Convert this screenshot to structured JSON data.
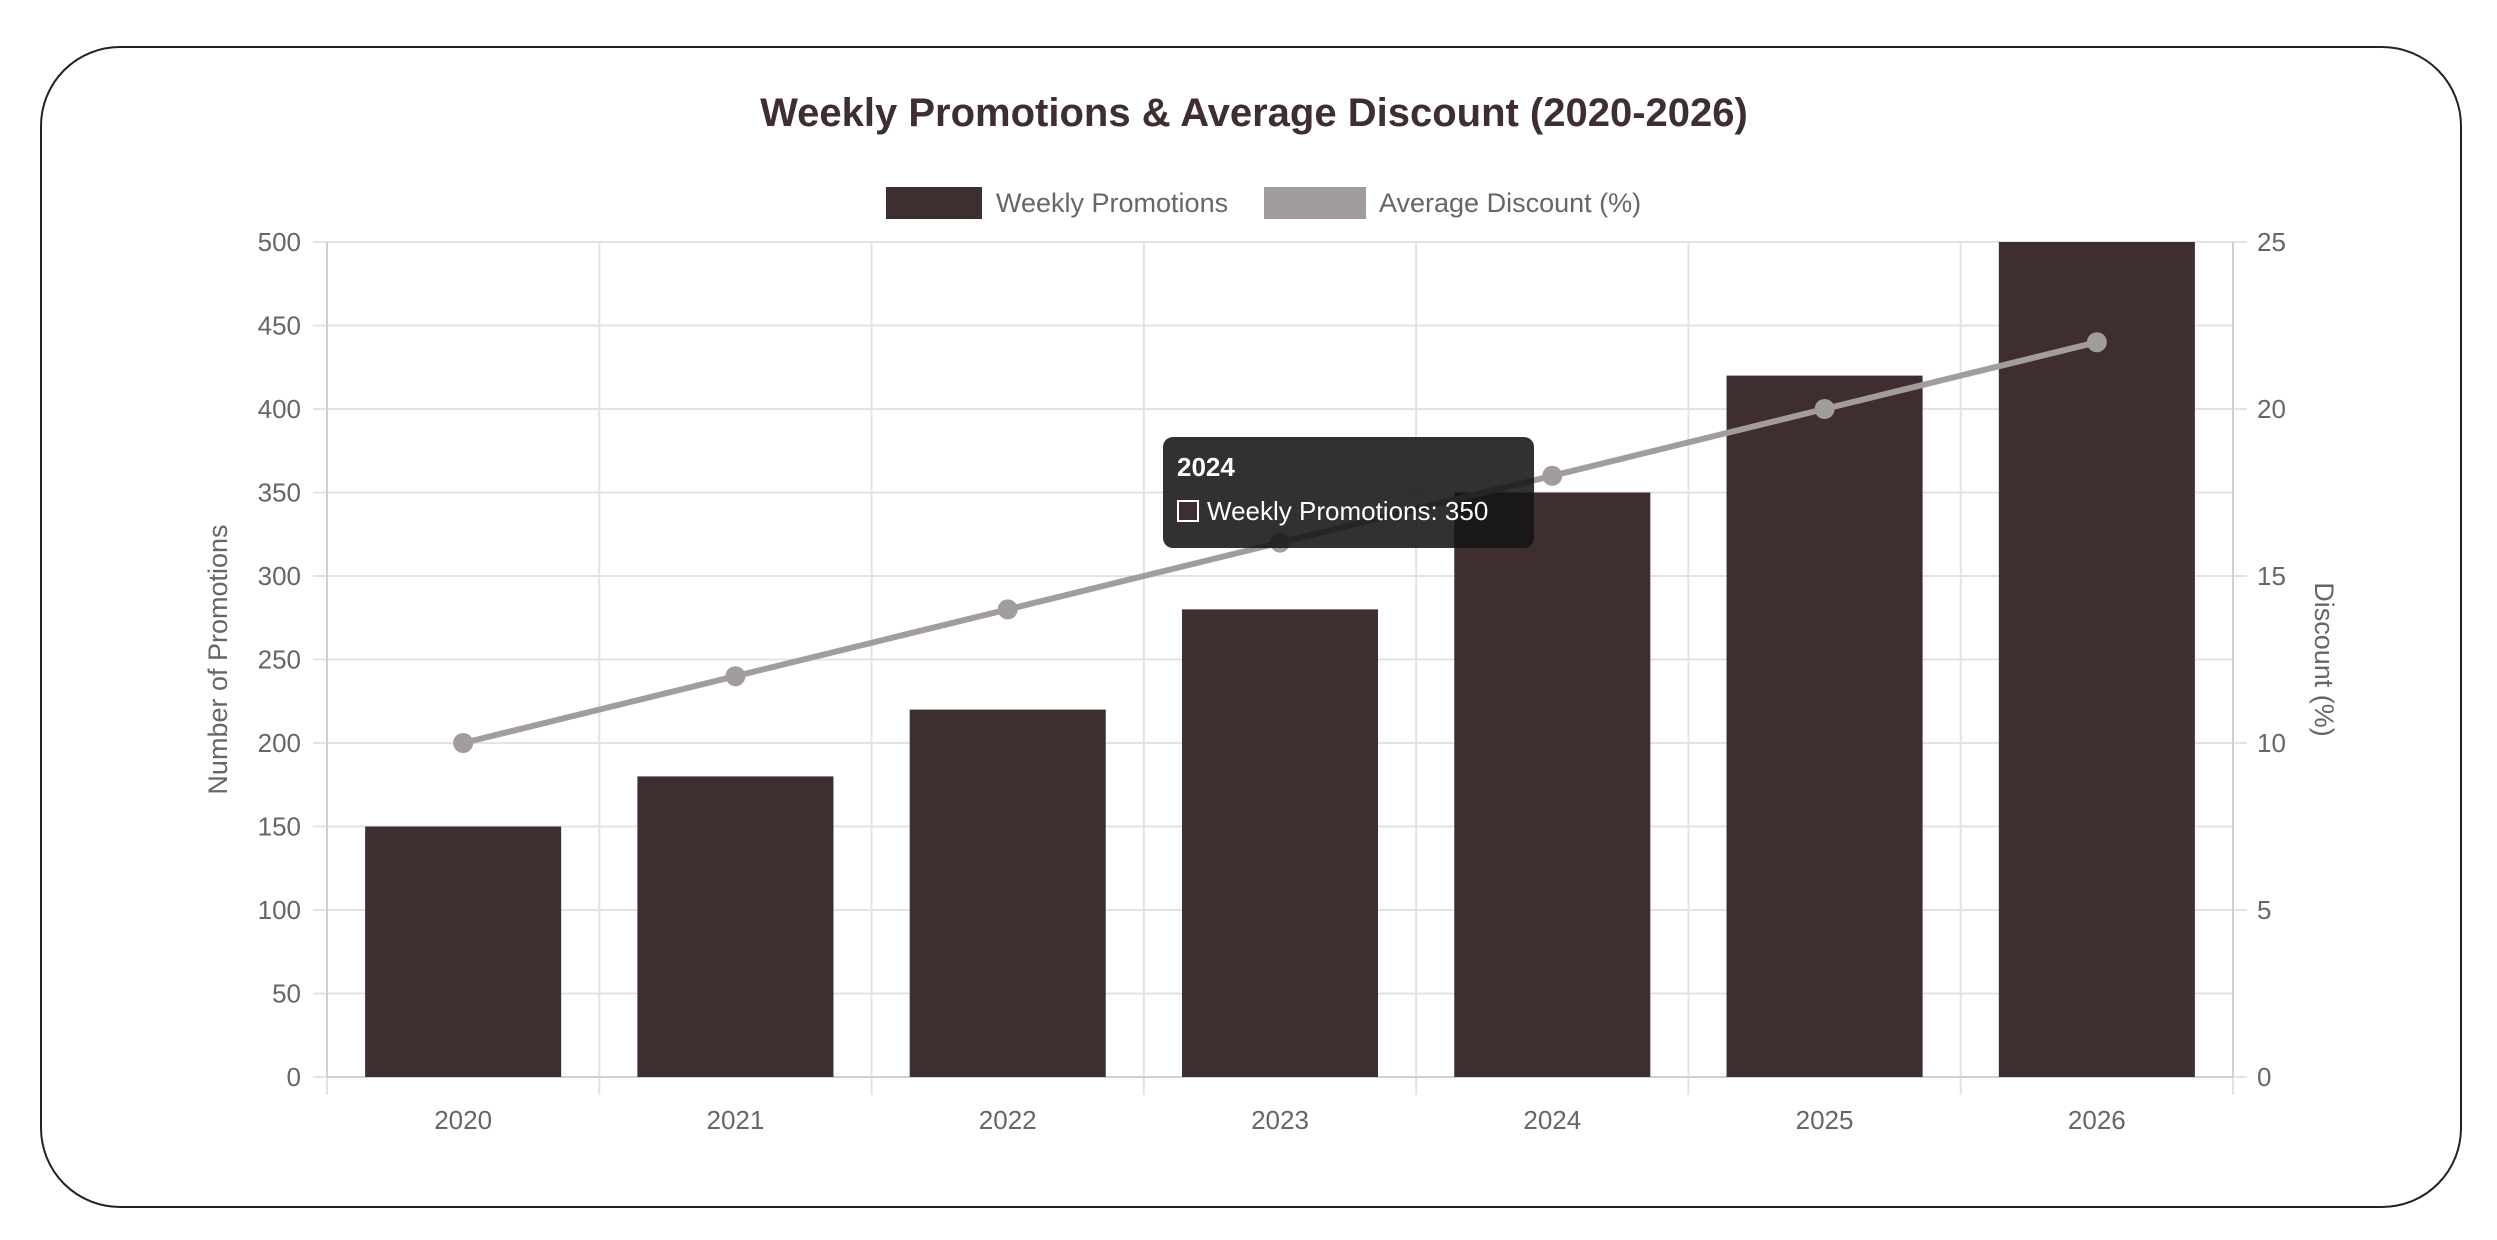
{
  "chart_data": {
    "type": "bar",
    "title": "Weekly Promotions & Average Discount (2020-2026)",
    "categories": [
      "2020",
      "2021",
      "2022",
      "2023",
      "2024",
      "2025",
      "2026"
    ],
    "series": [
      {
        "name": "Weekly Promotions",
        "type": "bar",
        "axis": "left",
        "values": [
          150,
          180,
          220,
          280,
          350,
          420,
          500
        ],
        "color": "#3f2e2f"
      },
      {
        "name": "Average Discount (%)",
        "type": "line",
        "axis": "right",
        "values": [
          10,
          12,
          14,
          16,
          18,
          20,
          22
        ],
        "color": "#a39c9c"
      }
    ],
    "ylabel": "Number of Promotions",
    "y2label": "Discount (%)",
    "ylim": [
      0,
      500
    ],
    "y2lim": [
      0,
      25
    ],
    "yticks": [
      "0",
      "50",
      "100",
      "150",
      "200",
      "250",
      "300",
      "350",
      "400",
      "450",
      "500"
    ],
    "y2ticks": [
      "0",
      "5",
      "10",
      "15",
      "20",
      "25"
    ],
    "grid": true,
    "legend_position": "top"
  },
  "tooltip": {
    "title": "2024",
    "label": "Weekly Promotions: 350"
  }
}
